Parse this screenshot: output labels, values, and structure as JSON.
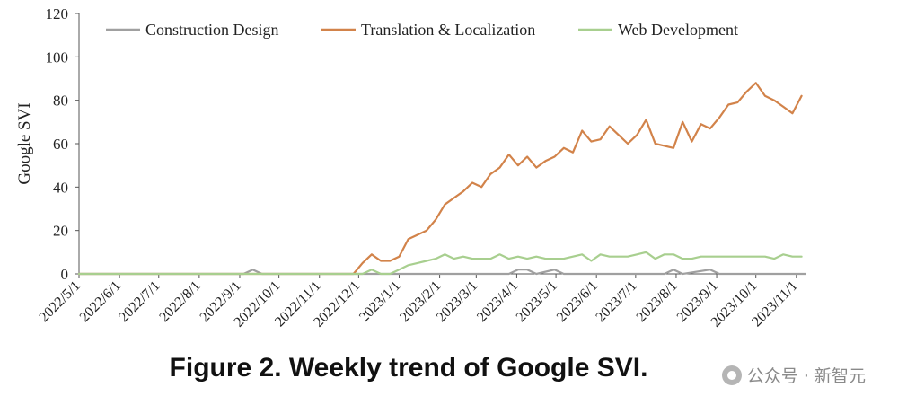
{
  "caption": "Figure 2. Weekly trend of Google SVI.",
  "watermark": "公众号 · 新智元",
  "chart_data": {
    "type": "line",
    "title": "",
    "xlabel": "",
    "ylabel": "Google SVI",
    "ylim": [
      0,
      120
    ],
    "yticks": [
      0,
      20,
      40,
      60,
      80,
      100,
      120
    ],
    "x_start": "2022/5/1",
    "x_end": "2023/11/8",
    "xticks": [
      "2022/5/1",
      "2022/6/1",
      "2022/7/1",
      "2022/8/1",
      "2022/9/1",
      "2022/10/1",
      "2022/11/1",
      "2022/12/1",
      "2023/1/1",
      "2023/2/1",
      "2023/3/1",
      "2023/4/1",
      "2023/5/1",
      "2023/6/1",
      "2023/7/1",
      "2023/8/1",
      "2023/9/1",
      "2023/10/1",
      "2023/11/1"
    ],
    "legend_position": "top",
    "series": [
      {
        "name": "Construction Design",
        "color": "#a0a0a0",
        "points": [
          [
            "2022/5/1",
            0
          ],
          [
            "2022/9/4",
            0
          ],
          [
            "2022/9/11",
            2
          ],
          [
            "2022/9/18",
            0
          ],
          [
            "2023/3/26",
            0
          ],
          [
            "2023/4/2",
            2
          ],
          [
            "2023/4/9",
            2
          ],
          [
            "2023/4/16",
            0
          ],
          [
            "2023/4/30",
            2
          ],
          [
            "2023/5/7",
            0
          ],
          [
            "2023/7/23",
            0
          ],
          [
            "2023/7/30",
            2
          ],
          [
            "2023/8/6",
            0
          ],
          [
            "2023/8/27",
            2
          ],
          [
            "2023/9/3",
            0
          ],
          [
            "2023/11/8",
            0
          ]
        ]
      },
      {
        "name": "Translation & Localization",
        "color": "#d2834a",
        "points": [
          [
            "2022/5/1",
            0
          ],
          [
            "2022/11/27",
            0
          ],
          [
            "2022/12/4",
            5
          ],
          [
            "2022/12/11",
            9
          ],
          [
            "2022/12/18",
            6
          ],
          [
            "2022/12/25",
            6
          ],
          [
            "2023/1/1",
            8
          ],
          [
            "2023/1/8",
            16
          ],
          [
            "2023/1/15",
            18
          ],
          [
            "2023/1/22",
            20
          ],
          [
            "2023/1/29",
            25
          ],
          [
            "2023/2/5",
            32
          ],
          [
            "2023/2/12",
            35
          ],
          [
            "2023/2/19",
            38
          ],
          [
            "2023/2/26",
            42
          ],
          [
            "2023/3/5",
            40
          ],
          [
            "2023/3/12",
            46
          ],
          [
            "2023/3/19",
            49
          ],
          [
            "2023/3/26",
            55
          ],
          [
            "2023/4/2",
            50
          ],
          [
            "2023/4/9",
            54
          ],
          [
            "2023/4/16",
            49
          ],
          [
            "2023/4/23",
            52
          ],
          [
            "2023/4/30",
            54
          ],
          [
            "2023/5/7",
            58
          ],
          [
            "2023/5/14",
            56
          ],
          [
            "2023/5/21",
            66
          ],
          [
            "2023/5/28",
            61
          ],
          [
            "2023/6/4",
            62
          ],
          [
            "2023/6/11",
            68
          ],
          [
            "2023/6/18",
            64
          ],
          [
            "2023/6/25",
            60
          ],
          [
            "2023/7/2",
            64
          ],
          [
            "2023/7/9",
            71
          ],
          [
            "2023/7/16",
            60
          ],
          [
            "2023/7/23",
            59
          ],
          [
            "2023/7/30",
            58
          ],
          [
            "2023/8/6",
            70
          ],
          [
            "2023/8/13",
            61
          ],
          [
            "2023/8/20",
            69
          ],
          [
            "2023/8/27",
            67
          ],
          [
            "2023/9/3",
            72
          ],
          [
            "2023/9/10",
            78
          ],
          [
            "2023/9/17",
            79
          ],
          [
            "2023/9/24",
            84
          ],
          [
            "2023/10/1",
            88
          ],
          [
            "2023/10/8",
            82
          ],
          [
            "2023/10/15",
            80
          ],
          [
            "2023/10/22",
            77
          ],
          [
            "2023/10/29",
            74
          ],
          [
            "2023/11/5",
            82
          ]
        ]
      },
      {
        "name": "Web Development",
        "color": "#a8cf8f",
        "points": [
          [
            "2022/5/1",
            0
          ],
          [
            "2022/12/4",
            0
          ],
          [
            "2022/12/11",
            2
          ],
          [
            "2022/12/18",
            0
          ],
          [
            "2022/12/25",
            0
          ],
          [
            "2023/1/1",
            2
          ],
          [
            "2023/1/8",
            4
          ],
          [
            "2023/1/15",
            5
          ],
          [
            "2023/1/22",
            6
          ],
          [
            "2023/1/29",
            7
          ],
          [
            "2023/2/5",
            9
          ],
          [
            "2023/2/12",
            7
          ],
          [
            "2023/2/19",
            8
          ],
          [
            "2023/2/26",
            7
          ],
          [
            "2023/3/5",
            7
          ],
          [
            "2023/3/12",
            7
          ],
          [
            "2023/3/19",
            9
          ],
          [
            "2023/3/26",
            7
          ],
          [
            "2023/4/2",
            8
          ],
          [
            "2023/4/9",
            7
          ],
          [
            "2023/4/16",
            8
          ],
          [
            "2023/4/23",
            7
          ],
          [
            "2023/4/30",
            7
          ],
          [
            "2023/5/7",
            7
          ],
          [
            "2023/5/14",
            8
          ],
          [
            "2023/5/21",
            9
          ],
          [
            "2023/5/28",
            6
          ],
          [
            "2023/6/4",
            9
          ],
          [
            "2023/6/11",
            8
          ],
          [
            "2023/6/18",
            8
          ],
          [
            "2023/6/25",
            8
          ],
          [
            "2023/7/2",
            9
          ],
          [
            "2023/7/9",
            10
          ],
          [
            "2023/7/16",
            7
          ],
          [
            "2023/7/23",
            9
          ],
          [
            "2023/7/30",
            9
          ],
          [
            "2023/8/6",
            7
          ],
          [
            "2023/8/13",
            7
          ],
          [
            "2023/8/20",
            8
          ],
          [
            "2023/8/27",
            8
          ],
          [
            "2023/9/3",
            8
          ],
          [
            "2023/9/10",
            8
          ],
          [
            "2023/9/17",
            8
          ],
          [
            "2023/9/24",
            8
          ],
          [
            "2023/10/1",
            8
          ],
          [
            "2023/10/8",
            8
          ],
          [
            "2023/10/15",
            7
          ],
          [
            "2023/10/22",
            9
          ],
          [
            "2023/10/29",
            8
          ],
          [
            "2023/11/5",
            8
          ]
        ]
      }
    ]
  }
}
